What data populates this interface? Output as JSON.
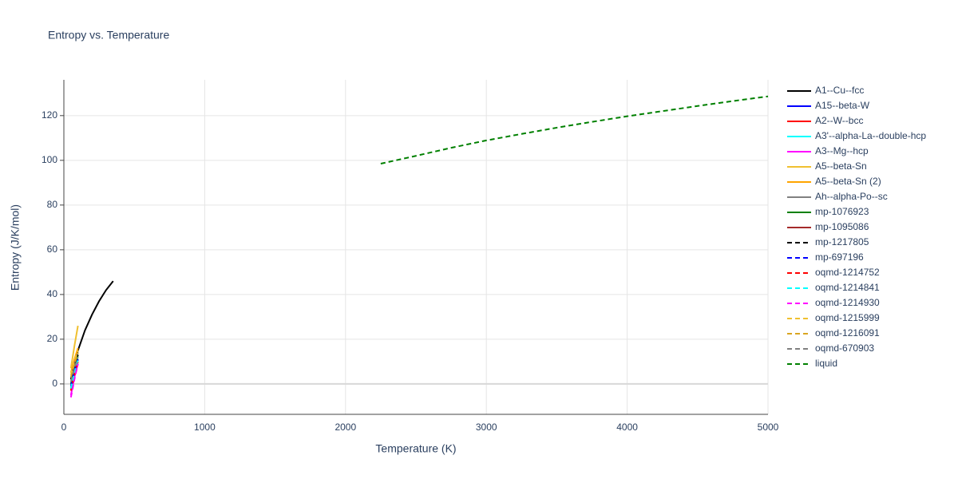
{
  "chart_data": {
    "type": "line",
    "title": "Entropy vs. Temperature",
    "xlabel": "Temperature (K)",
    "ylabel": "Entropy (J/K/mol)",
    "xlim": [
      0,
      5000
    ],
    "ylim": [
      -13.6,
      136
    ],
    "xticks": [
      0,
      1000,
      2000,
      3000,
      4000,
      5000
    ],
    "yticks": [
      0,
      20,
      40,
      60,
      80,
      100,
      120
    ],
    "grid": true,
    "series": [
      {
        "name": "A1--Cu--fcc",
        "color": "#000000",
        "dash": false,
        "x": [
          50,
          100,
          150,
          200,
          250,
          300,
          350
        ],
        "values": [
          2,
          15,
          24,
          31,
          37,
          42,
          46
        ]
      },
      {
        "name": "A15--beta-W",
        "color": "#0000ff",
        "dash": false,
        "x": [
          50,
          75,
          100
        ],
        "values": [
          -2,
          5,
          11
        ]
      },
      {
        "name": "A2--W--bcc",
        "color": "#ff0000",
        "dash": false,
        "x": [
          50,
          75,
          100
        ],
        "values": [
          -3,
          4,
          10
        ]
      },
      {
        "name": "A3'--alpha-La--double-hcp",
        "color": "#00ffff",
        "dash": false,
        "x": [
          50,
          75,
          100
        ],
        "values": [
          -1,
          6,
          12
        ]
      },
      {
        "name": "A3--Mg--hcp",
        "color": "#ff00ff",
        "dash": false,
        "x": [
          50,
          75,
          100
        ],
        "values": [
          -5,
          3,
          9
        ]
      },
      {
        "name": "A5--beta-Sn",
        "color": "#f0c030",
        "dash": false,
        "x": [
          50,
          75,
          100
        ],
        "values": [
          7,
          17,
          26
        ]
      },
      {
        "name": "A5--beta-Sn (2)",
        "color": "#ffa500",
        "dash": false,
        "x": [
          50,
          75,
          100
        ],
        "values": [
          5,
          11,
          16
        ]
      },
      {
        "name": "Ah--alpha-Po--sc",
        "color": "#808080",
        "dash": false,
        "x": [
          50,
          75,
          100
        ],
        "values": [
          3,
          9,
          14
        ]
      },
      {
        "name": "mp-1076923",
        "color": "#008000",
        "dash": false,
        "x": [
          50,
          75,
          100
        ],
        "values": [
          0,
          7,
          13
        ]
      },
      {
        "name": "mp-1095086",
        "color": "#a52a2a",
        "dash": false,
        "x": [
          50,
          75,
          100
        ],
        "values": [
          -2,
          5,
          11
        ]
      },
      {
        "name": "mp-1217805",
        "color": "#000000",
        "dash": true,
        "x": [
          50,
          75,
          100
        ],
        "values": [
          2,
          8,
          13
        ]
      },
      {
        "name": "mp-697196",
        "color": "#0000ff",
        "dash": true,
        "x": [
          50,
          75,
          100
        ],
        "values": [
          -1,
          6,
          11
        ]
      },
      {
        "name": "oqmd-1214752",
        "color": "#ff0000",
        "dash": true,
        "x": [
          50,
          75,
          100
        ],
        "values": [
          -3,
          4,
          10
        ]
      },
      {
        "name": "oqmd-1214841",
        "color": "#00ffff",
        "dash": true,
        "x": [
          50,
          75,
          100
        ],
        "values": [
          -2,
          5,
          11
        ]
      },
      {
        "name": "oqmd-1214930",
        "color": "#ff00ff",
        "dash": true,
        "x": [
          50,
          75,
          100
        ],
        "values": [
          -6,
          2,
          9
        ]
      },
      {
        "name": "oqmd-1215999",
        "color": "#f0c030",
        "dash": true,
        "x": [
          50,
          75,
          100
        ],
        "values": [
          4,
          10,
          15
        ]
      },
      {
        "name": "oqmd-1216091",
        "color": "#daa520",
        "dash": true,
        "x": [
          50,
          75,
          100
        ],
        "values": [
          3,
          9,
          14
        ]
      },
      {
        "name": "oqmd-670903",
        "color": "#808080",
        "dash": true,
        "x": [
          50,
          75,
          100
        ],
        "values": [
          1,
          7,
          12
        ]
      },
      {
        "name": "liquid",
        "color": "#008000",
        "dash": true,
        "x": [
          2250,
          2500,
          2750,
          3000,
          3250,
          3500,
          3750,
          4000,
          4250,
          4500,
          4750,
          5000
        ],
        "values": [
          98.5,
          102,
          105.6,
          108.9,
          111.8,
          114.6,
          117.2,
          119.7,
          122,
          124.3,
          126.5,
          128.6
        ]
      }
    ]
  }
}
